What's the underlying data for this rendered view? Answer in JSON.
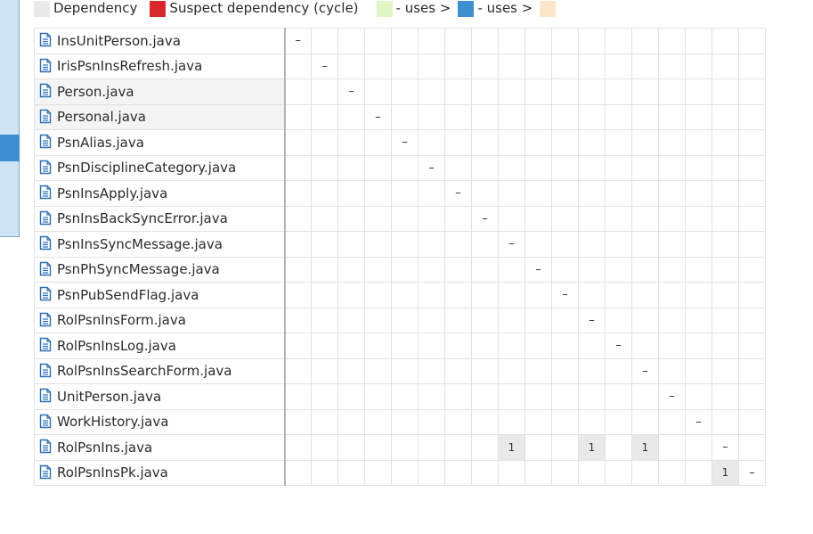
{
  "legend": {
    "dependency": {
      "label": "Dependency",
      "color": "#e9e9e9"
    },
    "suspect": {
      "label": "Suspect dependency (cycle)",
      "color": "#d9272e"
    },
    "uses1": {
      "label": "- uses >",
      "color": "#dff5c4"
    },
    "uses2": {
      "label": "- uses >",
      "color": "#3d8fd1"
    },
    "uses3_color": "#fbe6c9"
  },
  "colors": {
    "panel": "#cde2f2",
    "panel_active": "#3d8fd1",
    "icon": "#2d6fb3"
  },
  "matrix": {
    "rows": [
      {
        "name": "InsUnitPerson.java",
        "cells": {
          "0": "–"
        }
      },
      {
        "name": "IrisPsnInsRefresh.java",
        "cells": {
          "1": "–"
        }
      },
      {
        "name": "Person.java",
        "cells": {
          "2": "–"
        }
      },
      {
        "name": "Personal.java",
        "cells": {
          "3": "–"
        }
      },
      {
        "name": "PsnAlias.java",
        "cells": {
          "4": "–"
        }
      },
      {
        "name": "PsnDisciplineCategory.java",
        "cells": {
          "5": "–"
        }
      },
      {
        "name": "PsnInsApply.java",
        "cells": {
          "6": "–"
        }
      },
      {
        "name": "PsnInsBackSyncError.java",
        "cells": {
          "7": "–"
        }
      },
      {
        "name": "PsnInsSyncMessage.java",
        "cells": {
          "8": "–"
        }
      },
      {
        "name": "PsnPhSyncMessage.java",
        "cells": {
          "9": "–"
        }
      },
      {
        "name": "PsnPubSendFlag.java",
        "cells": {
          "10": "–"
        }
      },
      {
        "name": "RolPsnInsForm.java",
        "cells": {
          "11": "–"
        }
      },
      {
        "name": "RolPsnInsLog.java",
        "cells": {
          "12": "–"
        }
      },
      {
        "name": "RolPsnInsSearchForm.java",
        "cells": {
          "13": "–"
        }
      },
      {
        "name": "UnitPerson.java",
        "cells": {
          "14": "–"
        }
      },
      {
        "name": "WorkHistory.java",
        "cells": {
          "15": "–"
        }
      },
      {
        "name": "RolPsnIns.java",
        "cells": {
          "8": "1",
          "11": "1",
          "13": "1",
          "16": "–"
        }
      },
      {
        "name": "RolPsnInsPk.java",
        "cells": {
          "16": "1",
          "17": "–"
        }
      }
    ]
  }
}
